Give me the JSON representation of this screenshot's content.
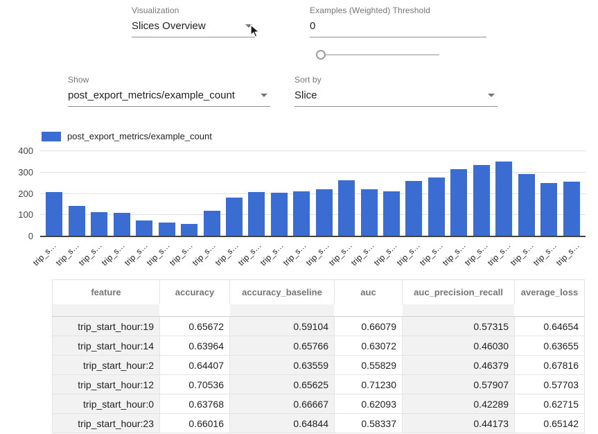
{
  "controls": {
    "visualization": {
      "label": "Visualization",
      "value": "Slices Overview"
    },
    "examples_threshold": {
      "label": "Examples (Weighted) Threshold",
      "value": "0",
      "slider_position": "min"
    },
    "show": {
      "label": "Show",
      "value": "post_export_metrics/example_count"
    },
    "sort_by": {
      "label": "Sort by",
      "value": "Slice"
    }
  },
  "chart_data": {
    "type": "bar",
    "title": "",
    "legend": "post_export_metrics/example_count",
    "legend_position": "top-left",
    "series_color": "#3b6cd2",
    "grid": true,
    "ylim": [
      0,
      400
    ],
    "yticks": [
      0,
      100,
      200,
      300,
      400
    ],
    "categories": [
      "trip_s…",
      "trip_s…",
      "trip_s…",
      "trip_s…",
      "trip_s…",
      "trip_s…",
      "trip_s…",
      "trip_s…",
      "trip_s…",
      "trip_s…",
      "trip_s…",
      "trip_s…",
      "trip_s…",
      "trip_s…",
      "trip_s…",
      "trip_s…",
      "trip_s…",
      "trip_s…",
      "trip_s…",
      "trip_s…",
      "trip_s…",
      "trip_s…",
      "trip_s…",
      "trip_s…"
    ],
    "values": [
      207,
      142,
      114,
      110,
      76,
      66,
      58,
      120,
      182,
      207,
      204,
      212,
      222,
      264,
      220,
      210,
      261,
      278,
      314,
      336,
      353,
      293,
      252,
      258
    ]
  },
  "table": {
    "columns": [
      "feature",
      "accuracy",
      "accuracy_baseline",
      "auc",
      "auc_precision_recall",
      "average_loss"
    ],
    "rows": [
      [
        "trip_start_hour:19",
        "0.65672",
        "0.59104",
        "0.66079",
        "0.57315",
        "0.64654"
      ],
      [
        "trip_start_hour:14",
        "0.63964",
        "0.65766",
        "0.63072",
        "0.46030",
        "0.63655"
      ],
      [
        "trip_start_hour:2",
        "0.64407",
        "0.63559",
        "0.55829",
        "0.46379",
        "0.67816"
      ],
      [
        "trip_start_hour:12",
        "0.70536",
        "0.65625",
        "0.71230",
        "0.57907",
        "0.57703"
      ],
      [
        "trip_start_hour:0",
        "0.63768",
        "0.66667",
        "0.62093",
        "0.42289",
        "0.62715"
      ],
      [
        "trip_start_hour:23",
        "0.66016",
        "0.64844",
        "0.58337",
        "0.44173",
        "0.65142"
      ]
    ]
  }
}
